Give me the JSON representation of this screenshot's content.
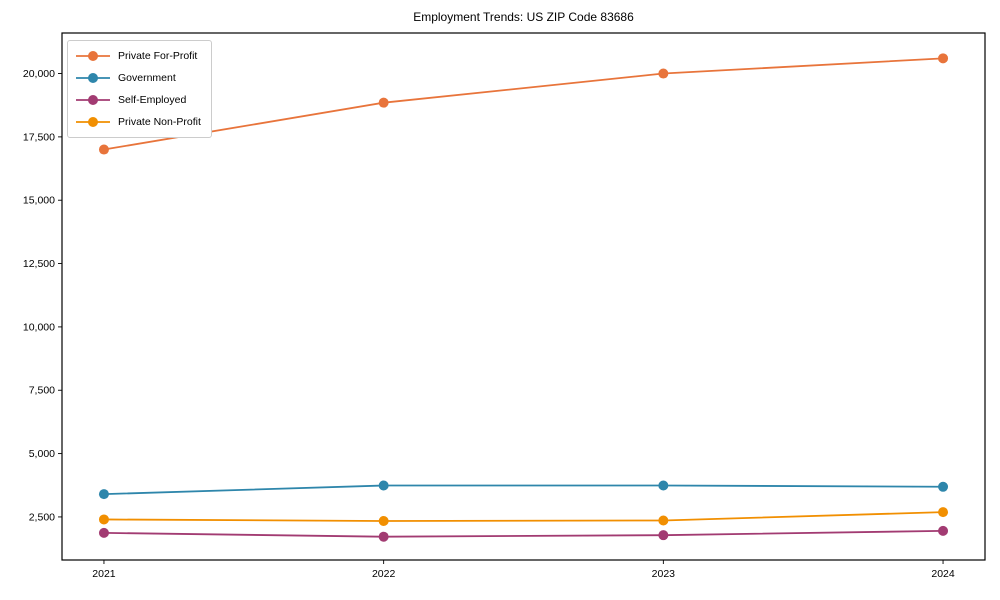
{
  "chart_data": {
    "type": "line",
    "title": "Employment Trends: US ZIP Code 83686",
    "x": [
      2021,
      2022,
      2023,
      2024
    ],
    "x_tick_labels": [
      "2021",
      "2022",
      "2023",
      "2024"
    ],
    "y_ticks": [
      2500,
      5000,
      7500,
      10000,
      12500,
      15000,
      17500,
      20000
    ],
    "y_tick_labels": [
      "2,500",
      "5,000",
      "7,500",
      "10,000",
      "12,500",
      "15,000",
      "17,500",
      "20,000"
    ],
    "series": [
      {
        "name": "Private For-Profit",
        "color": "#e8743b",
        "values": [
          17000,
          18850,
          20000,
          20600
        ]
      },
      {
        "name": "Government",
        "color": "#2e86ab",
        "values": [
          3400,
          3740,
          3740,
          3690
        ]
      },
      {
        "name": "Self-Employed",
        "color": "#a23b72",
        "values": [
          1870,
          1720,
          1780,
          1950
        ]
      },
      {
        "name": "Private Non-Profit",
        "color": "#f18f01",
        "values": [
          2400,
          2340,
          2360,
          2690
        ]
      }
    ],
    "xlabel": "",
    "ylabel": "",
    "xlim": [
      2020.85,
      2024.15
    ],
    "ylim": [
      800,
      21600
    ],
    "grid": false,
    "legend_position": "upper-left",
    "marker": "circle",
    "background_color": "#ffffff",
    "axis_color": "#000000"
  }
}
